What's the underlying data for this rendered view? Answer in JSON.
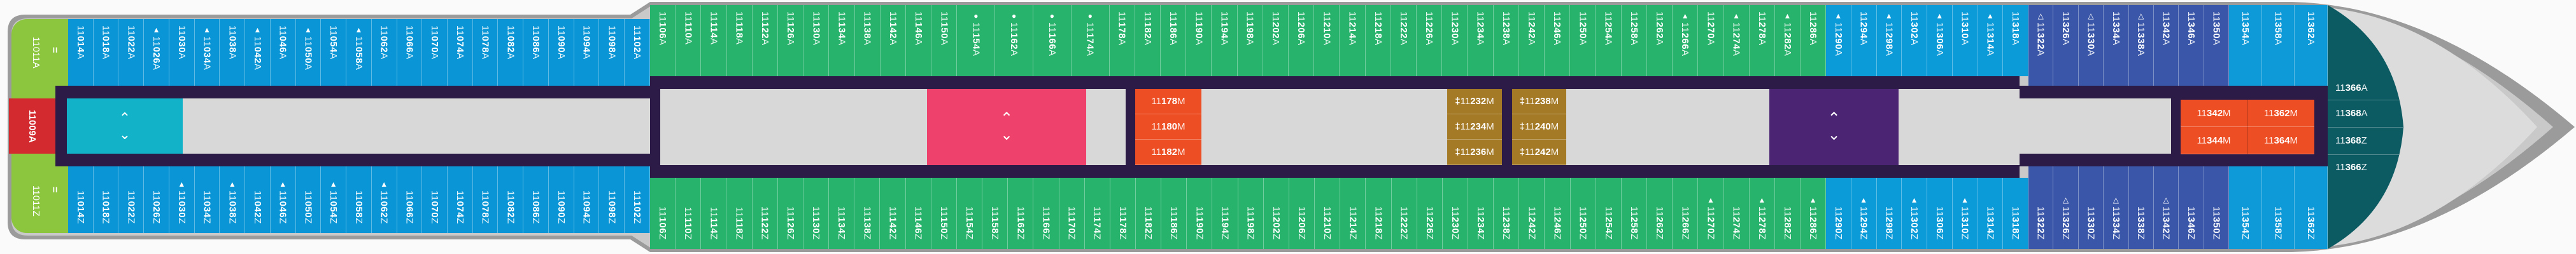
{
  "colors": {
    "hull": "#9b9b9b",
    "deck": "#d8d8d8",
    "corridor": "#2c1a47",
    "aft_blue": "#0a96d6",
    "green": "#27b36b",
    "blue": "#0b9bd9",
    "navy": "#3a56a8",
    "light_blue": "#0e9ad8",
    "teal": "#0c5a62",
    "lime": "#8cc63f",
    "red": "#d22a2e",
    "elevator_aft": "#12b2c9",
    "elevator_mid": "#ee416b",
    "elevator_fwd": "#4b2474",
    "orange": "#ee4e23",
    "gold": "#a47a26"
  },
  "end_cabins": {
    "top": "11011A",
    "bottom": "11011Z",
    "marker": "=",
    "center": "11009A"
  },
  "elevators": {
    "symbol_up": "^",
    "symbol_down": "v",
    "aft": "elevator-icon",
    "mid": "elevator-icon",
    "fwd": "elevator-icon"
  },
  "markers": {
    "11026A": "▲",
    "11034A": "▲",
    "11042A": "▲",
    "11050A": "▲",
    "11058A": "▲",
    "11030Z": "▲",
    "11038Z": "▲",
    "11046Z": "▲",
    "11054Z": "▲",
    "11062Z": "▲",
    "11154A": "●",
    "11162A": "●",
    "11166A": "●",
    "11174A": "●",
    "11266A": "▲",
    "11274A": "▲",
    "11282A": "▲",
    "11270Z": "▲",
    "11278Z": "▲",
    "11286Z": "▲",
    "11290A": "▲",
    "11298A": "▲",
    "11306A": "▲",
    "11314A": "▲",
    "11294Z": "▲",
    "11302Z": "▲",
    "11310Z": "▲",
    "11322A": "△",
    "11330A": "△",
    "11338A": "△",
    "11326Z": "△",
    "11334Z": "△",
    "11342Z": "△"
  },
  "sections": {
    "aft": {
      "top": [
        "11014A",
        "11018A",
        "11022A",
        "11026A",
        "11030A",
        "11034A",
        "11038A",
        "11042A",
        "11046A",
        "11050A",
        "11054A",
        "11058A",
        "11062A",
        "11066A",
        "11070A",
        "11074A",
        "11078A",
        "11082A",
        "11086A",
        "11090A",
        "11094A",
        "11098A",
        "11102A"
      ],
      "bottom": [
        "11014Z",
        "11018Z",
        "11022Z",
        "11026Z",
        "11030Z",
        "11034Z",
        "11038Z",
        "11042Z",
        "11046Z",
        "11050Z",
        "11054Z",
        "11058Z",
        "11062Z",
        "11066Z",
        "11070Z",
        "11074Z",
        "11078Z",
        "11082Z",
        "11086Z",
        "11090Z",
        "11094Z",
        "11098Z",
        "11102Z"
      ]
    },
    "green": {
      "top": [
        "11106A",
        "11110A",
        "11114A",
        "11118A",
        "11122A",
        "11126A",
        "11130A",
        "11134A",
        "11138A",
        "11142A",
        "11146A",
        "11150A",
        "11154A",
        "11162A",
        "11166A",
        "11174A",
        "11178A",
        "11182A",
        "11186A",
        "11190A",
        "11194A",
        "11198A",
        "11202A",
        "11206A",
        "11210A",
        "11214A",
        "11218A",
        "11222A",
        "11226A",
        "11230A",
        "11234A",
        "11238A",
        "11242A",
        "11246A",
        "11250A",
        "11254A",
        "11258A",
        "11262A",
        "11266A",
        "11270A",
        "11274A",
        "11278A",
        "11282A",
        "11286A"
      ],
      "bottom": [
        "11106Z",
        "11110Z",
        "11114Z",
        "11118Z",
        "11122Z",
        "11126Z",
        "11130Z",
        "11134Z",
        "11138Z",
        "11142Z",
        "11146Z",
        "11150Z",
        "11154Z",
        "11158Z",
        "11162Z",
        "11166Z",
        "11170Z",
        "11174Z",
        "11178Z",
        "11182Z",
        "11186Z",
        "11190Z",
        "11194Z",
        "11198Z",
        "11202Z",
        "11206Z",
        "11210Z",
        "11214Z",
        "11218Z",
        "11222Z",
        "11226Z",
        "11230Z",
        "11234Z",
        "11238Z",
        "11242Z",
        "11246Z",
        "11250Z",
        "11254Z",
        "11258Z",
        "11262Z",
        "11266Z",
        "11270Z",
        "11274Z",
        "11278Z",
        "11282Z",
        "11286Z"
      ]
    },
    "blue": {
      "top": [
        "11290A",
        "11294A",
        "11298A",
        "11302A",
        "11306A",
        "11310A",
        "11314A",
        "11318A"
      ],
      "bottom": [
        "11290Z",
        "11294Z",
        "11298Z",
        "11302Z",
        "11306Z",
        "11310Z",
        "11314Z",
        "11318Z"
      ]
    },
    "navy": {
      "top": [
        "11322A",
        "11326A",
        "11330A",
        "11334A",
        "11338A",
        "11342A",
        "11346A",
        "11350A"
      ],
      "bottom": [
        "11322Z",
        "11326Z",
        "11330Z",
        "11334Z",
        "11338Z",
        "11342Z",
        "11346Z",
        "11350Z"
      ]
    },
    "light_blue": {
      "top": [
        "11354A",
        "11358A",
        "11362A"
      ],
      "bottom": [
        "11354Z",
        "11358Z",
        "11362Z"
      ]
    }
  },
  "center_cabins": {
    "orange_mid": [
      "11178M",
      "11180M",
      "11182M"
    ],
    "gold_left": [
      "11232M",
      "11234M",
      "11236M"
    ],
    "gold_right": [
      "11238M",
      "11240M",
      "11242M"
    ],
    "gold_marker": "‡",
    "orange_fwd": [
      "11342M",
      "11362M",
      "11344M",
      "11364M"
    ]
  },
  "bow_cabins": [
    "11366A",
    "11368A",
    "11368Z",
    "11366Z"
  ]
}
